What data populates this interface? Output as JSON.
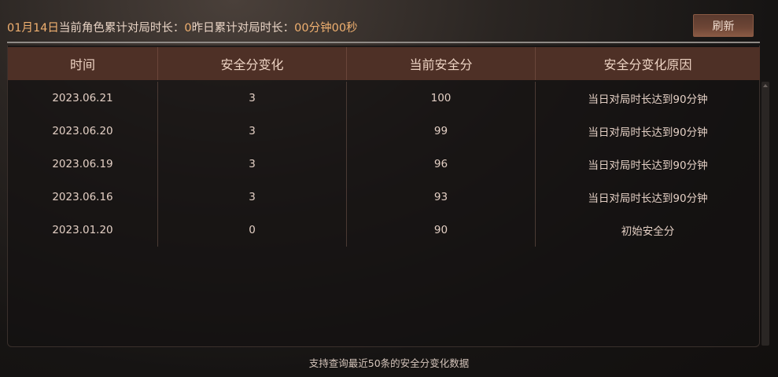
{
  "info": {
    "date": "01月14日",
    "current_label": "当前角色累计对局时长：",
    "current_value": "0",
    "yesterday_label": "昨日累计对局时长：",
    "yesterday_value": "00分钟00秒"
  },
  "refresh_label": "刷新",
  "table": {
    "headers": [
      "时间",
      "安全分变化",
      "当前安全分",
      "安全分变化原因"
    ],
    "rows": [
      [
        "2023.06.21",
        "3",
        "100",
        "当日对局时长达到90分钟"
      ],
      [
        "2023.06.20",
        "3",
        "99",
        "当日对局时长达到90分钟"
      ],
      [
        "2023.06.19",
        "3",
        "96",
        "当日对局时长达到90分钟"
      ],
      [
        "2023.06.16",
        "3",
        "93",
        "当日对局时长达到90分钟"
      ],
      [
        "2023.01.20",
        "0",
        "90",
        "初始安全分"
      ]
    ]
  },
  "footer": "支持查询最近50条的安全分变化数据",
  "colors": {
    "accent": "#f0b070",
    "header_bg": "#4e3026"
  }
}
